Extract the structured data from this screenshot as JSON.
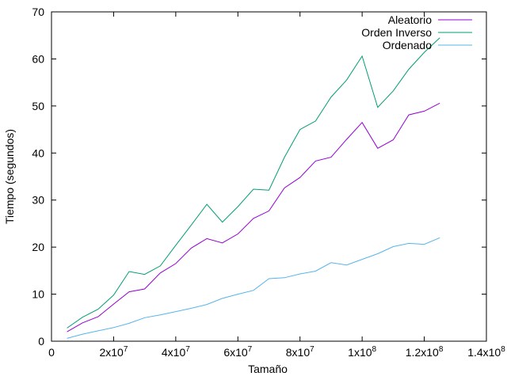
{
  "chart_data": {
    "type": "line",
    "xlabel": "Tamaño",
    "ylabel": "Tiempo (segundos)",
    "xlim": [
      0,
      140000000
    ],
    "ylim": [
      0,
      70
    ],
    "x_ticks": [
      {
        "value": 0,
        "label": "0"
      },
      {
        "value": 20000000,
        "label": "2x10",
        "exp": "7"
      },
      {
        "value": 40000000,
        "label": "4x10",
        "exp": "7"
      },
      {
        "value": 60000000,
        "label": "6x10",
        "exp": "7"
      },
      {
        "value": 80000000,
        "label": "8x10",
        "exp": "7"
      },
      {
        "value": 100000000,
        "label": "1x10",
        "exp": "8"
      },
      {
        "value": 120000000,
        "label": "1.2x10",
        "exp": "8"
      },
      {
        "value": 140000000,
        "label": "1.4x10",
        "exp": "8"
      }
    ],
    "y_ticks": [
      0,
      10,
      20,
      30,
      40,
      50,
      60,
      70
    ],
    "legend_position": "top-right",
    "grid": false,
    "x": [
      5000000,
      10000000,
      15000000,
      20000000,
      25000000,
      30000000,
      35000000,
      40000000,
      45000000,
      50000000,
      55000000,
      60000000,
      65000000,
      70000000,
      75000000,
      80000000,
      85000000,
      90000000,
      95000000,
      100000000,
      105000000,
      110000000,
      115000000,
      120000000,
      125000000
    ],
    "series": [
      {
        "name": "Aleatorio",
        "color": "#9400d3",
        "values": [
          2.0,
          3.9,
          5.2,
          7.9,
          10.5,
          11.1,
          14.5,
          16.5,
          19.8,
          21.8,
          20.9,
          22.8,
          26.1,
          27.7,
          32.6,
          34.8,
          38.3,
          39.1,
          42.9,
          46.5,
          41.0,
          42.8,
          48.1,
          48.9,
          50.6
        ]
      },
      {
        "name": "Orden Inverso",
        "color": "#009e73",
        "values": [
          2.8,
          5.1,
          6.8,
          9.8,
          14.8,
          14.2,
          16.0,
          20.4,
          24.7,
          29.1,
          25.3,
          28.6,
          32.3,
          32.1,
          39.1,
          45.0,
          46.8,
          51.9,
          55.5,
          60.6,
          49.7,
          53.2,
          57.8,
          61.4,
          64.5
        ]
      },
      {
        "name": "Ordenado",
        "color": "#56b4e9",
        "values": [
          0.6,
          1.5,
          2.2,
          2.9,
          3.8,
          5.0,
          5.6,
          6.3,
          7.0,
          7.8,
          9.1,
          10.0,
          10.8,
          13.3,
          13.5,
          14.3,
          14.9,
          16.7,
          16.2,
          17.4,
          18.6,
          20.1,
          20.8,
          20.6,
          22.0
        ]
      }
    ]
  }
}
